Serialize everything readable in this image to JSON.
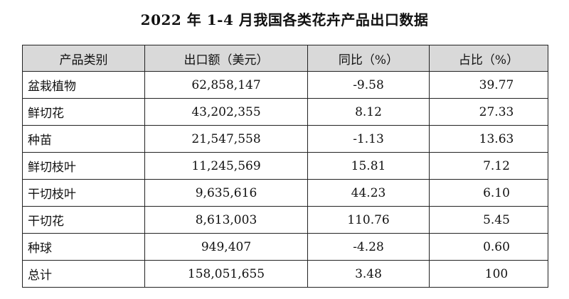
{
  "document": {
    "title": "2022 年 1-4 月我国各类花卉产品出口数据"
  },
  "table": {
    "headers": [
      "产品类别",
      "出口额（美元）",
      "同比（%）",
      "占比（%）"
    ],
    "rows": [
      [
        "盆栽植物",
        "62,858,147",
        "-9.58",
        "39.77"
      ],
      [
        "鲜切花",
        "43,202,355",
        "8.12",
        "27.33"
      ],
      [
        "种苗",
        "21,547,558",
        "-1.13",
        "13.63"
      ],
      [
        "鲜切枝叶",
        "11,245,569",
        "15.81",
        "7.12"
      ],
      [
        "干切枝叶",
        "9,635,616",
        "44.23",
        "6.10"
      ],
      [
        "干切花",
        "8,613,003",
        "110.76",
        "5.45"
      ],
      [
        "种球",
        "949,407",
        "-4.28",
        "0.60"
      ],
      [
        "总计",
        "158,051,655",
        "3.48",
        "100"
      ]
    ]
  },
  "colors": {
    "header_background": "#d9d9d9",
    "border": "#222222",
    "text": "#111111"
  }
}
